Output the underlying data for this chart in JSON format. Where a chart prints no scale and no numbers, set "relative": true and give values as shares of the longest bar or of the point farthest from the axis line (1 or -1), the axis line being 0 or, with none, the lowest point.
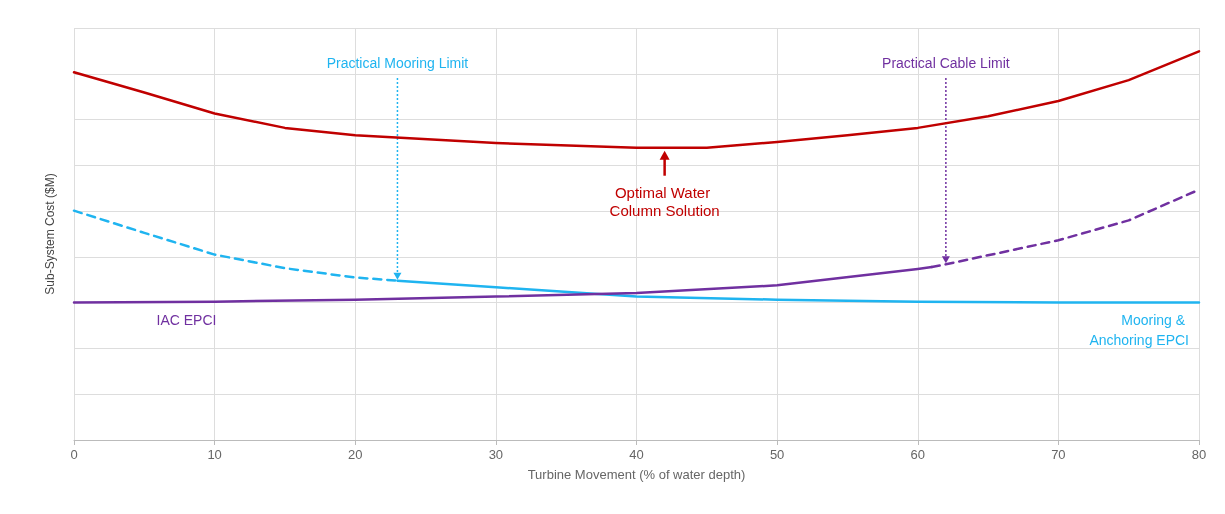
{
  "chart_data": {
    "type": "line",
    "relative": true,
    "xlabel": "Turbine Movement (% of water depth)",
    "ylabel": "Sub-System Cost ($M)",
    "xlim": [
      0,
      80
    ],
    "xticks": [
      0,
      10,
      20,
      30,
      40,
      50,
      60,
      70,
      80
    ],
    "grid": true,
    "legend": false,
    "marker": "none",
    "series": [
      {
        "color": "#c00000",
        "line_style": "solid",
        "x": [
          0,
          5,
          10,
          15,
          20,
          30,
          40,
          45,
          50,
          55,
          60,
          65,
          70,
          75,
          80
        ],
        "values": [
          0.946,
          0.894,
          0.84,
          0.803,
          0.784,
          0.764,
          0.752,
          0.752,
          0.767,
          0.784,
          0.803,
          0.833,
          0.872,
          0.926,
          1
        ]
      },
      {
        "color": "#1fb4f0",
        "line_style": "dashed",
        "x": [
          0,
          5,
          10,
          15,
          20,
          23
        ],
        "values": [
          0.59,
          0.533,
          0.477,
          0.442,
          0.418,
          0.41
        ]
      },
      {
        "name": "Mooring & Anchoring EPCI",
        "color": "#1fb4f0",
        "line_style": "solid",
        "x": [
          23,
          30,
          37,
          40,
          50,
          60,
          70,
          80
        ],
        "values": [
          0.41,
          0.393,
          0.376,
          0.369,
          0.361,
          0.356,
          0.354,
          0.354
        ]
      },
      {
        "name": "IAC EPCI",
        "color": "#7030a0",
        "line_style": "solid",
        "x": [
          0,
          10,
          20,
          30,
          40,
          50,
          60,
          61
        ],
        "values": [
          0.354,
          0.356,
          0.361,
          0.369,
          0.378,
          0.398,
          0.44,
          0.445
        ]
      },
      {
        "color": "#7030a0",
        "line_style": "dashed",
        "x": [
          61,
          62,
          70,
          75,
          80
        ],
        "values": [
          0.445,
          0.452,
          0.514,
          0.565,
          0.644
        ]
      }
    ],
    "annotations": [
      {
        "text": "Practical Mooring Limit",
        "x": 23,
        "y": 0.41
      },
      {
        "text": "Practical Cable Limit",
        "x": 62,
        "y": 0.452
      },
      {
        "text": "Optimal Water Column Solution",
        "x": 42,
        "y": 0.752
      }
    ]
  }
}
